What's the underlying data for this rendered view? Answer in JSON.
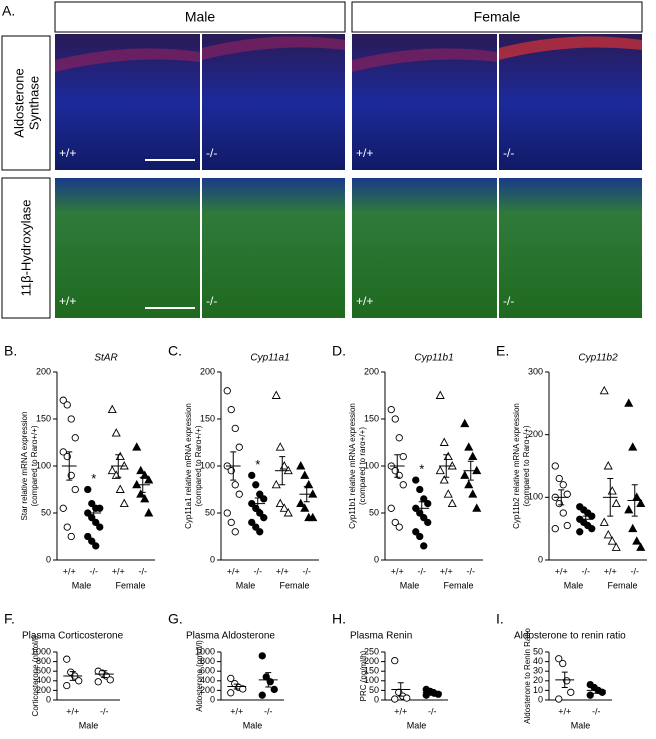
{
  "panel_a": {
    "label": "A.",
    "columns": [
      "Male",
      "Female"
    ],
    "rows": [
      {
        "label_lines": [
          "Aldosterone",
          "Synthase"
        ],
        "images": [
          "+/+",
          "-/-",
          "+/+",
          "-/-"
        ]
      },
      {
        "label_lines": [
          "11β-Hydroxylase"
        ],
        "images": [
          "+/+",
          "-/-",
          "+/+",
          "-/-"
        ]
      }
    ]
  },
  "chart_data": [
    {
      "type": "scatter",
      "label": "B.",
      "title": "StAR",
      "ylabel": [
        "Star relative mRNA expression",
        "(compared to Rarα+/+)"
      ],
      "ylim": [
        0,
        200
      ],
      "yticks": [
        0,
        50,
        100,
        150,
        200
      ],
      "groups": [
        {
          "name": "Male",
          "series": [
            {
              "name": "+/+",
              "marker": "open-circle",
              "values": [
                170,
                165,
                150,
                130,
                115,
                110,
                90,
                75,
                55,
                35,
                25
              ],
              "mean": 100,
              "sem": 15
            },
            {
              "name": "-/-",
              "marker": "filled-circle",
              "values": [
                75,
                60,
                55,
                55,
                50,
                45,
                40,
                35,
                25,
                20,
                15
              ],
              "mean": 50,
              "sem": 7,
              "annotation": "*"
            }
          ]
        },
        {
          "name": "Female",
          "series": [
            {
              "name": "+/+",
              "marker": "open-triangle",
              "values": [
                160,
                135,
                110,
                100,
                95,
                90,
                75,
                60
              ],
              "mean": 100,
              "sem": 12
            },
            {
              "name": "-/-",
              "marker": "filled-triangle",
              "values": [
                120,
                95,
                90,
                85,
                80,
                70,
                65,
                50
              ],
              "mean": 80,
              "sem": 8
            }
          ]
        }
      ]
    },
    {
      "type": "scatter",
      "label": "C.",
      "title": "Cyp11a1",
      "ylabel": [
        "Cyp11a1 relative mRNA expression",
        "(compared to Rarα+/+)"
      ],
      "ylim": [
        0,
        200
      ],
      "yticks": [
        0,
        50,
        100,
        150,
        200
      ],
      "groups": [
        {
          "name": "Male",
          "series": [
            {
              "name": "+/+",
              "marker": "open-circle",
              "values": [
                180,
                160,
                140,
                120,
                100,
                95,
                80,
                70,
                50,
                40,
                30
              ],
              "mean": 100,
              "sem": 15
            },
            {
              "name": "-/-",
              "marker": "filled-circle",
              "values": [
                90,
                80,
                70,
                65,
                60,
                55,
                50,
                45,
                40,
                35,
                30
              ],
              "mean": 60,
              "sem": 6,
              "annotation": "*"
            }
          ]
        },
        {
          "name": "Female",
          "series": [
            {
              "name": "+/+",
              "marker": "open-triangle",
              "values": [
                175,
                120,
                100,
                95,
                80,
                60,
                55,
                50
              ],
              "mean": 95,
              "sem": 15
            },
            {
              "name": "-/-",
              "marker": "filled-triangle",
              "values": [
                100,
                90,
                80,
                70,
                60,
                55,
                45,
                45
              ],
              "mean": 70,
              "sem": 8
            }
          ]
        }
      ]
    },
    {
      "type": "scatter",
      "label": "D.",
      "title": "Cyp11b1",
      "ylabel": [
        "Cyp11b1 relative mRNA expression",
        "(compared to rarα+/+)"
      ],
      "ylim": [
        0,
        200
      ],
      "yticks": [
        0,
        50,
        100,
        150,
        200
      ],
      "groups": [
        {
          "name": "Male",
          "series": [
            {
              "name": "+/+",
              "marker": "open-circle",
              "values": [
                160,
                150,
                130,
                110,
                100,
                95,
                90,
                80,
                55,
                40,
                35
              ],
              "mean": 100,
              "sem": 12
            },
            {
              "name": "-/-",
              "marker": "filled-circle",
              "values": [
                85,
                75,
                65,
                60,
                55,
                50,
                45,
                40,
                30,
                25,
                15
              ],
              "mean": 55,
              "sem": 7,
              "annotation": "*"
            }
          ]
        },
        {
          "name": "Female",
          "series": [
            {
              "name": "+/+",
              "marker": "open-triangle",
              "values": [
                175,
                125,
                110,
                100,
                95,
                85,
                70,
                60
              ],
              "mean": 100,
              "sem": 12
            },
            {
              "name": "-/-",
              "marker": "filled-triangle",
              "values": [
                145,
                120,
                110,
                95,
                90,
                80,
                70,
                55
              ],
              "mean": 95,
              "sem": 10
            }
          ]
        }
      ]
    },
    {
      "type": "scatter",
      "label": "E.",
      "title": "Cyp11b2",
      "ylabel": [
        "Cyp11b2 relative mRNA expression",
        "(compared to Rarα+/+)"
      ],
      "ylim": [
        0,
        300
      ],
      "yticks": [
        0,
        100,
        200,
        300
      ],
      "groups": [
        {
          "name": "Male",
          "series": [
            {
              "name": "+/+",
              "marker": "open-circle",
              "values": [
                150,
                130,
                120,
                105,
                100,
                90,
                75,
                55,
                50
              ],
              "mean": 100,
              "sem": 12
            },
            {
              "name": "-/-",
              "marker": "filled-circle",
              "values": [
                85,
                80,
                75,
                70,
                65,
                60,
                55,
                50,
                45
              ],
              "mean": 65,
              "sem": 5
            }
          ]
        },
        {
          "name": "Female",
          "series": [
            {
              "name": "+/+",
              "marker": "open-triangle",
              "values": [
                270,
                150,
                110,
                90,
                60,
                40,
                30,
                20
              ],
              "mean": 100,
              "sem": 30
            },
            {
              "name": "-/-",
              "marker": "filled-triangle",
              "values": [
                250,
                180,
                100,
                90,
                80,
                50,
                30,
                20
              ],
              "mean": 95,
              "sem": 25
            }
          ]
        }
      ]
    },
    {
      "type": "scatter",
      "label": "F.",
      "title": "Plasma Corticosterone",
      "ylabel": [
        "Corticosterone (nmol/l)"
      ],
      "ylim": [
        0,
        1000
      ],
      "yticks": [
        0,
        200,
        400,
        600,
        800,
        1000
      ],
      "groups": [
        {
          "name": "Male",
          "series": [
            {
              "name": "+/+",
              "marker": "open-circle",
              "values": [
                850,
                580,
                500,
                400,
                300
              ],
              "mean": 500,
              "sem": 90
            },
            {
              "name": "-/-",
              "marker": "open-circle",
              "values": [
                600,
                560,
                500,
                420,
                380
              ],
              "mean": 540,
              "sem": 70
            }
          ]
        }
      ]
    },
    {
      "type": "scatter",
      "label": "G.",
      "title": "Plasma Aldosterone",
      "ylabel": [
        "Aldosterone (pmol/l)"
      ],
      "ylim": [
        0,
        1000
      ],
      "yticks": [
        0,
        200,
        400,
        600,
        800,
        1000
      ],
      "groups": [
        {
          "name": "Male",
          "series": [
            {
              "name": "+/+",
              "marker": "open-circle",
              "values": [
                450,
                340,
                260,
                230,
                150
              ],
              "mean": 280,
              "sem": 50
            },
            {
              "name": "-/-",
              "marker": "filled-circle",
              "values": [
                920,
                480,
                380,
                220,
                100
              ],
              "mean": 420,
              "sem": 150
            }
          ]
        }
      ]
    },
    {
      "type": "scatter",
      "label": "H.",
      "title": "Plasma Renin",
      "ylabel": [
        "PRC (ng/ml/h)"
      ],
      "ylim": [
        0,
        250
      ],
      "yticks": [
        0,
        50,
        100,
        150,
        200,
        250
      ],
      "groups": [
        {
          "name": "Male",
          "series": [
            {
              "name": "+/+",
              "marker": "open-circle",
              "values": [
                205,
                40,
                20,
                10,
                5
              ],
              "mean": 55,
              "sem": 35
            },
            {
              "name": "-/-",
              "marker": "filled-circle",
              "values": [
                55,
                45,
                35,
                30,
                25
              ],
              "mean": 40,
              "sem": 15
            }
          ]
        }
      ]
    },
    {
      "type": "scatter",
      "label": "I.",
      "title": "Aldosterone to renin ratio",
      "ylabel": [
        "Aldosterone to Renin Ratio"
      ],
      "ylim": [
        0,
        50
      ],
      "yticks": [
        0,
        10,
        20,
        30,
        40,
        50
      ],
      "groups": [
        {
          "name": "Male",
          "series": [
            {
              "name": "+/+",
              "marker": "open-circle",
              "values": [
                43,
                38,
                20,
                8,
                1
              ],
              "mean": 21,
              "sem": 8
            },
            {
              "name": "-/-",
              "marker": "filled-circle",
              "values": [
                16,
                13,
                10,
                8,
                5
              ],
              "mean": 10,
              "sem": 3
            }
          ]
        }
      ]
    }
  ]
}
